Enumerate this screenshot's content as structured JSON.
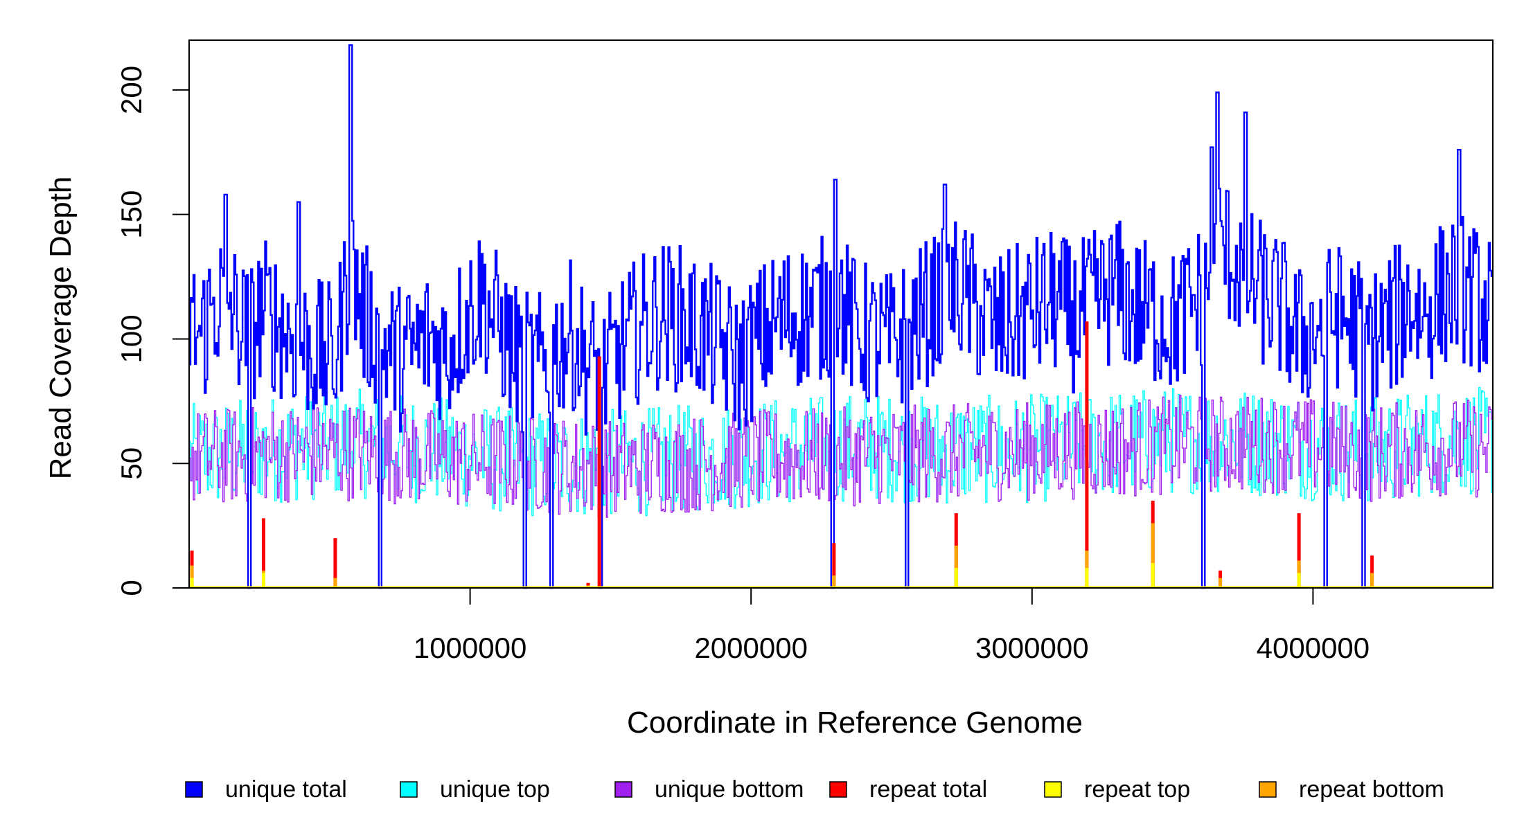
{
  "chart_data": {
    "type": "line",
    "xlabel": "Coordinate in Reference Genome",
    "ylabel": "Read Coverage Depth",
    "xlim": [
      0,
      4640000
    ],
    "ylim": [
      0,
      220
    ],
    "x_ticks": [
      1000000,
      2000000,
      3000000,
      4000000
    ],
    "x_tick_labels": [
      "1000000",
      "2000000",
      "3000000",
      "4000000"
    ],
    "y_ticks": [
      0,
      50,
      100,
      150,
      200
    ],
    "y_tick_labels": [
      "0",
      "50",
      "100",
      "150",
      "200"
    ],
    "grid": false,
    "legend_position": "bottom",
    "bin_width": 5000,
    "series": [
      {
        "name": "unique total",
        "color": "#0000ff",
        "profile_x": [
          0,
          40000,
          80000,
          130000,
          180000,
          220000,
          260000,
          300000,
          380000,
          450000,
          520000,
          575000,
          620000,
          690000,
          760000,
          850000,
          920000,
          980000,
          1040000,
          1100000,
          1170000,
          1240000,
          1300000,
          1360000,
          1420000,
          1480000,
          1540000,
          1600000,
          1680000,
          1760000,
          1840000,
          1900000,
          1960000,
          2030000,
          2100000,
          2180000,
          2260000,
          2310000,
          2360000,
          2430000,
          2500000,
          2560000,
          2620000,
          2680000,
          2740000,
          2800000,
          2870000,
          2940000,
          3010000,
          3080000,
          3150000,
          3230000,
          3300000,
          3370000,
          3440000,
          3500000,
          3560000,
          3620000,
          3660000,
          3700000,
          3760000,
          3820000,
          3890000,
          3950000,
          4020000,
          4080000,
          4150000,
          4210000,
          4280000,
          4340000,
          4400000,
          4460000,
          4520000,
          4580000,
          4640000
        ],
        "profile_y": [
          108,
          100,
          112,
          118,
          105,
          102,
          112,
          108,
          100,
          95,
          92,
          130,
          110,
          98,
          92,
          100,
          95,
          108,
          118,
          105,
          92,
          88,
          96,
          102,
          90,
          86,
          96,
          104,
          110,
          108,
          102,
          96,
          90,
          100,
          108,
          110,
          112,
          118,
          105,
          100,
          98,
          104,
          110,
          116,
          120,
          112,
          104,
          108,
          112,
          115,
          108,
          115,
          120,
          112,
          110,
          106,
          112,
          120,
          140,
          135,
          125,
          118,
          112,
          100,
          105,
          110,
          105,
          100,
          106,
          115,
          110,
          118,
          122,
          116,
          110
        ],
        "spikes": [
          {
            "x": 575000,
            "y": 218
          },
          {
            "x": 2300000,
            "y": 164
          },
          {
            "x": 3660000,
            "y": 199
          },
          {
            "x": 3760000,
            "y": 191
          },
          {
            "x": 4520000,
            "y": 176
          },
          {
            "x": 130000,
            "y": 158
          },
          {
            "x": 390000,
            "y": 155
          },
          {
            "x": 2690000,
            "y": 162
          },
          {
            "x": 3640000,
            "y": 177
          }
        ]
      },
      {
        "name": "unique top",
        "color": "#00ffff",
        "profile_x": [
          0,
          300000,
          600000,
          900000,
          1200000,
          1500000,
          1800000,
          2100000,
          2400000,
          2700000,
          3000000,
          3300000,
          3600000,
          3900000,
          4200000,
          4500000,
          4640000
        ],
        "profile_y": [
          52,
          56,
          58,
          55,
          50,
          50,
          52,
          55,
          57,
          55,
          56,
          58,
          60,
          58,
          55,
          60,
          58
        ]
      },
      {
        "name": "unique bottom",
        "color": "#a020f0",
        "profile_x": [
          0,
          300000,
          600000,
          900000,
          1200000,
          1500000,
          1800000,
          2100000,
          2400000,
          2700000,
          3000000,
          3300000,
          3600000,
          3900000,
          4200000,
          4500000,
          4640000
        ],
        "profile_y": [
          52,
          54,
          55,
          52,
          50,
          48,
          50,
          52,
          53,
          54,
          55,
          56,
          58,
          58,
          54,
          57,
          55
        ]
      },
      {
        "name": "repeat total",
        "color": "#ff0000",
        "points": [
          {
            "x": 10000,
            "y": 15
          },
          {
            "x": 265000,
            "y": 28
          },
          {
            "x": 520000,
            "y": 20
          },
          {
            "x": 1420000,
            "y": 2
          },
          {
            "x": 1460000,
            "y": 93
          },
          {
            "x": 2295000,
            "y": 18
          },
          {
            "x": 2730000,
            "y": 30
          },
          {
            "x": 3195000,
            "y": 107
          },
          {
            "x": 3430000,
            "y": 35
          },
          {
            "x": 3670000,
            "y": 7
          },
          {
            "x": 3950000,
            "y": 30
          },
          {
            "x": 4210000,
            "y": 13
          }
        ]
      },
      {
        "name": "repeat top",
        "color": "#ffff00",
        "points": [
          {
            "x": 10000,
            "y": 4
          },
          {
            "x": 265000,
            "y": 6
          },
          {
            "x": 2730000,
            "y": 8
          },
          {
            "x": 3195000,
            "y": 8
          },
          {
            "x": 3430000,
            "y": 10
          },
          {
            "x": 3950000,
            "y": 6
          }
        ]
      },
      {
        "name": "repeat bottom",
        "color": "#ffa500",
        "points": [
          {
            "x": 10000,
            "y": 9
          },
          {
            "x": 265000,
            "y": 7
          },
          {
            "x": 520000,
            "y": 4
          },
          {
            "x": 1420000,
            "y": 1
          },
          {
            "x": 2295000,
            "y": 5
          },
          {
            "x": 2730000,
            "y": 17
          },
          {
            "x": 3195000,
            "y": 15
          },
          {
            "x": 3430000,
            "y": 26
          },
          {
            "x": 3670000,
            "y": 4
          },
          {
            "x": 3950000,
            "y": 11
          },
          {
            "x": 4210000,
            "y": 6
          }
        ]
      }
    ],
    "zero_coverage_gaps": [
      215000,
      680000,
      1195000,
      1290000,
      1465000,
      2290000,
      2555000,
      3610000,
      4045000,
      4180000
    ]
  }
}
